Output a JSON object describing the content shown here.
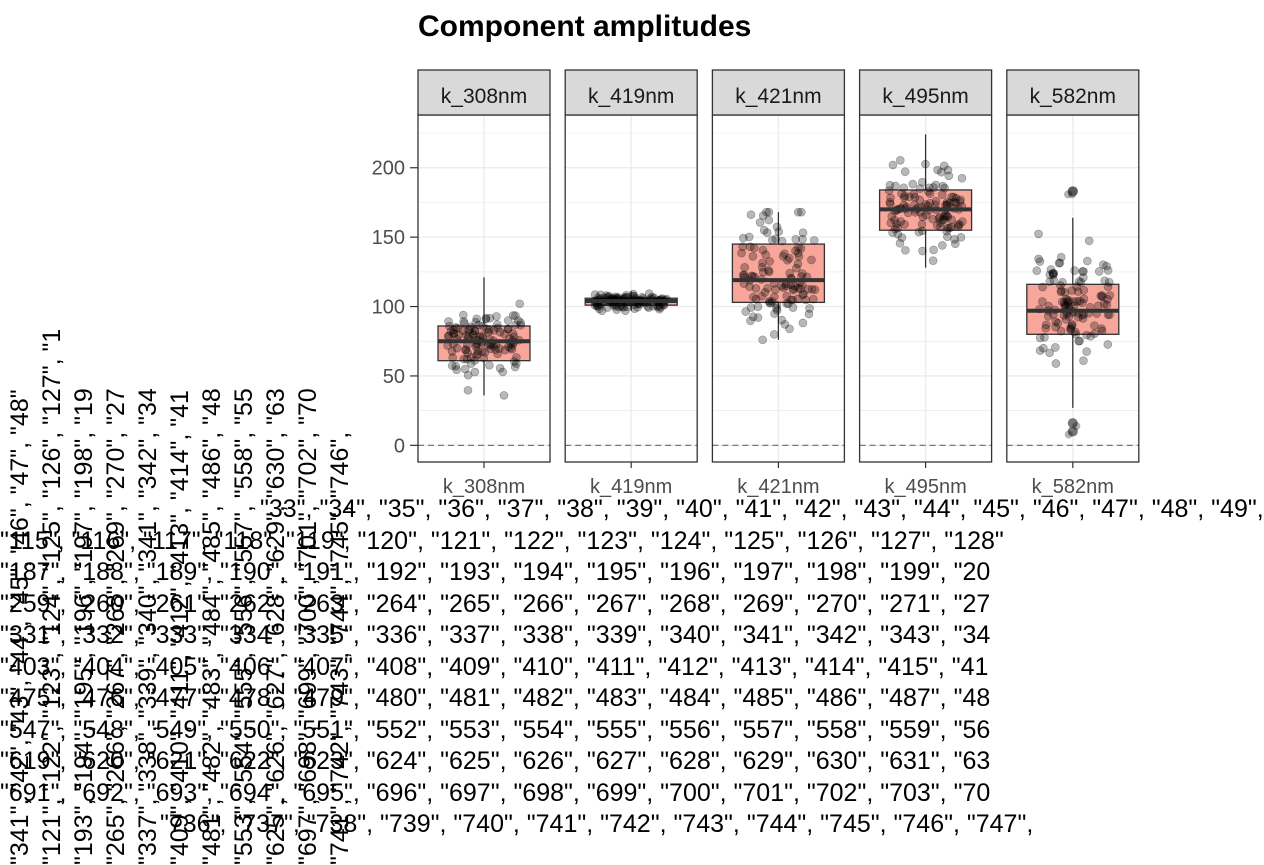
{
  "chart_data": {
    "type": "box",
    "title": "Component amplitudes",
    "xlabel": "",
    "ylabel": "",
    "ylim": [
      -12,
      238
    ],
    "yticks": [
      0,
      50,
      100,
      150,
      200
    ],
    "reference_line": {
      "y": 0,
      "style": "dashed"
    },
    "grid": true,
    "legend": "none",
    "panels": [
      {
        "strip": "k_308nm",
        "category": "k_308nm",
        "q1": 61,
        "median": 75,
        "q3": 86,
        "whisker_low": 36,
        "whisker_high": 121,
        "outliers": []
      },
      {
        "strip": "k_419nm",
        "category": "k_419nm",
        "q1": 101,
        "median": 104,
        "q3": 106,
        "whisker_low": 97,
        "whisker_high": 111,
        "outliers": []
      },
      {
        "strip": "k_421nm",
        "category": "k_421nm",
        "q1": 103,
        "median": 119,
        "q3": 145,
        "whisker_low": 76,
        "whisker_high": 168,
        "outliers": []
      },
      {
        "strip": "k_495nm",
        "category": "k_495nm",
        "q1": 155,
        "median": 170,
        "q3": 184,
        "whisker_low": 128,
        "whisker_high": 224,
        "outliers": []
      },
      {
        "strip": "k_582nm",
        "category": "k_582nm",
        "q1": 80,
        "median": 97,
        "q3": 116,
        "whisker_low": 27,
        "whisker_high": 164,
        "outliers": [
          183,
          183,
          10,
          16
        ]
      }
    ],
    "colors": {
      "box_fill": "#f8a59a",
      "box_border": "#333333",
      "median": "#333333",
      "points": "#000000",
      "strip_bg": "#d9d9d9",
      "panel_border": "#333333",
      "grid": "#ebebeb",
      "axis_text": "#4d4d4d"
    }
  },
  "overlay_text": {
    "rows": [
      "\"33\", \"34\", \"35\", \"36\", \"37\", \"38\", \"39\", \"40\", \"41\", \"42\", \"43\", \"44\", \"45\", \"46\", \"47\", \"48\", \"49\",",
      "\"115\", \"116\", \"117\", \"118\", \"119\", \"120\", \"121\", \"122\", \"123\", \"124\", \"125\", \"126\", \"127\", \"128\"",
      "\"187\", \"188\", \"189\", \"190\", \"191\", \"192\", \"193\", \"194\", \"195\", \"196\", \"197\", \"198\", \"199\", \"20",
      "\"259\", \"260\", \"261\", \"262\", \"263\", \"264\", \"265\", \"266\", \"267\", \"268\", \"269\", \"270\", \"271\", \"27",
      "\"331\", \"332\", \"333\", \"334\", \"335\", \"336\", \"337\", \"338\", \"339\", \"340\", \"341\", \"342\", \"343\", \"34",
      "\"403\", \"404\", \"405\", \"406\", \"407\", \"408\", \"409\", \"410\", \"411\", \"412\", \"413\", \"414\", \"415\", \"41",
      "\"475\", \"476\", \"477\", \"478\", \"479\", \"480\", \"481\", \"482\", \"483\", \"484\", \"485\", \"486\", \"487\", \"48",
      "\"547\", \"548\", \"549\", \"550\", \"551\", \"552\", \"553\", \"554\", \"555\", \"556\", \"557\", \"558\", \"559\", \"56",
      "\"619\", \"620\", \"621\", \"622\", \"623\", \"624\", \"625\", \"626\", \"627\", \"628\", \"629\", \"630\", \"631\", \"63",
      "\"691\", \"692\", \"693\", \"694\", \"695\", \"696\", \"697\", \"698\", \"699\", \"700\", \"701\", \"702\", \"703\", \"70",
      "\"736\", \"737\", \"738\", \"739\", \"740\", \"741\", \"742\", \"743\", \"744\", \"745\", \"746\", \"747\","
    ],
    "columns": [
      "\"341\", \"42\", \"43\", \"44\", \"45\", \"46\", \"47\", \"48\"",
      "\"121\", \"122\", \"123\", \"124\", \"125\", \"126\", \"127\", \"1",
      "\"193\", \"194\", \"195\", \"196\", \"197\", \"198\", \"19",
      "\"265\", \"266\", \"267\", \"268\", \"269\", \"270\", \"27",
      "\"337\", \"338\", \"339\", \"340\", \"341\", \"342\", \"34",
      "\"409\", \"410\", \"411\", \"412\", \"413\", \"414\", \"41",
      "\"481\", \"482\", \"483\", \"484\", \"485\", \"486\", \"48",
      "\"553\", \"554\", \"555\", \"556\", \"557\", \"558\", \"55",
      "\"625\", \"626\", \"627\", \"628\", \"629\", \"630\", \"63",
      "\"697\", \"698\", \"699\", \"700\", \"701\", \"702\", \"70",
      "\"741\", \"742\", \"743\", \"744\", \"745\", \"746\","
    ]
  }
}
